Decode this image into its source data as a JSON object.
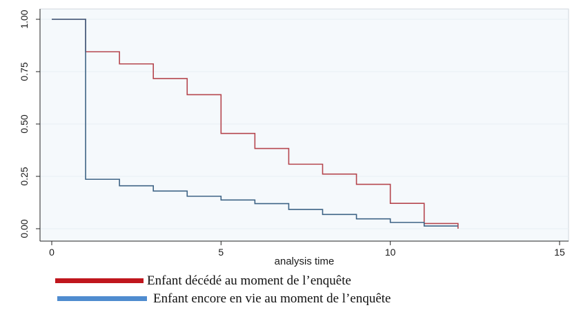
{
  "chart_data": {
    "type": "line",
    "title": "",
    "xlabel": "analysis time",
    "ylabel": "",
    "xlim": [
      0,
      15
    ],
    "ylim": [
      0,
      1
    ],
    "x_ticks": [
      "0",
      "5",
      "10",
      "15"
    ],
    "x_tick_values": [
      0,
      5,
      10,
      15
    ],
    "y_ticks": [
      "0.00",
      "0.25",
      "0.50",
      "0.75",
      "1.00"
    ],
    "y_tick_values": [
      0,
      0.25,
      0.5,
      0.75,
      1
    ],
    "grid": true,
    "legend_position": "bottom",
    "series": [
      {
        "name": "Enfant décédé au moment de l’enquête",
        "color": "#b5454d",
        "legend_color": "#c0161d",
        "step": true,
        "x": [
          0,
          1,
          2,
          3,
          4,
          5,
          6,
          7,
          8,
          9,
          10,
          11,
          12
        ],
        "y": [
          1.0,
          0.845,
          0.787,
          0.717,
          0.64,
          0.455,
          0.383,
          0.308,
          0.261,
          0.212,
          0.121,
          0.025,
          0.0
        ]
      },
      {
        "name": "Enfant encore en vie au moment de l’enquête",
        "color": "#3d6385",
        "legend_color": "#4f8ccf",
        "step": true,
        "x": [
          0,
          1,
          2,
          3,
          4,
          5,
          6,
          7,
          8,
          9,
          10,
          11,
          12
        ],
        "y": [
          1.0,
          0.236,
          0.205,
          0.18,
          0.155,
          0.137,
          0.12,
          0.092,
          0.068,
          0.047,
          0.03,
          0.013,
          0.013
        ]
      }
    ]
  }
}
